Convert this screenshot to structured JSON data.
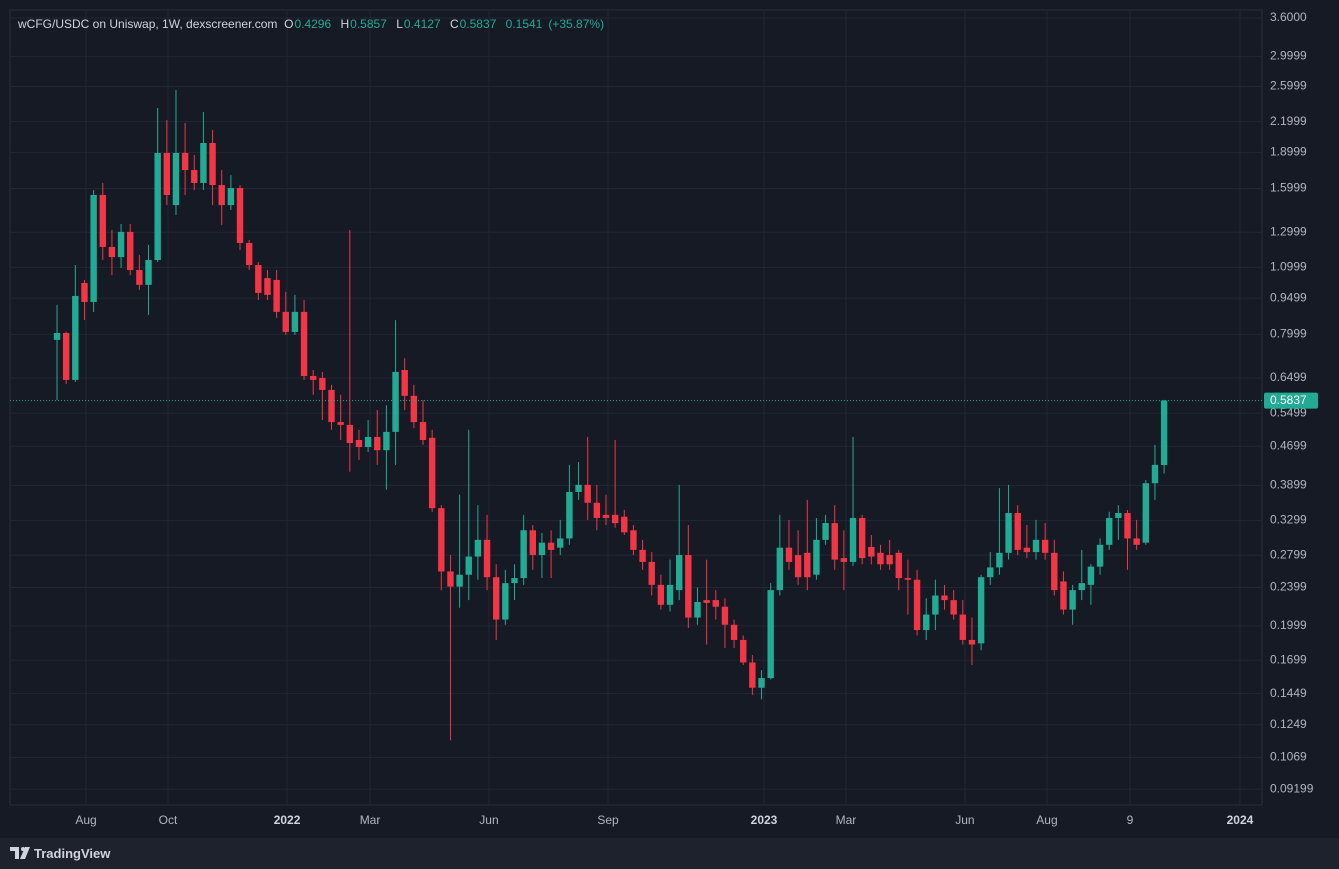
{
  "chart_data": {
    "type": "candlestick",
    "title": "wCFG/USDC on Uniswap, 1W, dexscreener.com",
    "ohlc_labels": [
      "O",
      "H",
      "L",
      "C"
    ],
    "change": 0.1541,
    "change_percent": 35.87,
    "change_percent_label": "(+35.87%)",
    "categories": [
      null,
      null,
      null,
      null,
      null,
      null,
      null,
      null,
      null,
      null,
      null,
      null,
      null,
      null,
      null,
      null,
      null,
      null,
      null,
      null,
      null,
      null,
      null,
      null,
      null,
      null,
      null,
      null,
      null,
      null,
      null,
      null,
      null,
      null,
      null,
      null,
      null,
      null,
      null,
      null,
      null,
      null,
      null,
      null,
      null,
      null,
      null,
      null,
      null,
      null,
      null,
      null,
      null,
      null,
      null,
      null,
      null,
      null,
      null,
      null,
      null,
      null,
      null,
      null,
      null,
      null,
      null,
      null,
      null,
      null,
      null,
      null,
      null,
      null,
      null,
      null,
      null,
      null,
      null,
      null,
      null,
      null,
      null,
      null,
      null,
      null,
      null,
      null,
      null,
      null,
      null,
      null,
      null,
      null,
      null,
      null,
      null,
      null,
      null,
      null,
      null,
      null,
      null,
      null,
      null,
      null,
      null,
      null,
      null,
      null,
      null,
      null,
      null,
      null,
      null,
      null,
      null,
      null,
      null,
      null,
      null,
      null
    ],
    "open": [
      0.779,
      0.805,
      0.644,
      1.021,
      0.933,
      1.552,
      1.212,
      1.155,
      1.302,
      1.086,
      1.012,
      1.139,
      1.895,
      1.479,
      1.895,
      1.747,
      1.643,
      1.987,
      1.627,
      1.479,
      1.604,
      1.235,
      1.112,
      1.045,
      1.036,
      0.89,
      0.809,
      0.89,
      0.656,
      0.65,
      0.614,
      0.527,
      0.52,
      0.484,
      0.468,
      0.491,
      0.461,
      0.503,
      0.675,
      0.597,
      0.527,
      0.489,
      0.35,
      0.259,
      0.241,
      0.255,
      0.278,
      0.301,
      0.252,
      0.206,
      0.245,
      0.251,
      0.315,
      0.28,
      0.297,
      0.29,
      0.303,
      0.378,
      0.391,
      0.359,
      0.339,
      0.339,
      0.336,
      0.315,
      0.287,
      0.271,
      0.243,
      0.221,
      0.237,
      0.28,
      0.208,
      0.226,
      0.226,
      0.219,
      0.201,
      0.187,
      0.168,
      0.149,
      0.156,
      0.237,
      0.29,
      0.28,
      0.283,
      0.255,
      0.301,
      0.326,
      0.276,
      0.271,
      0.334,
      0.291,
      0.283,
      0.28,
      0.283,
      0.251,
      0.249,
      0.196,
      0.211,
      0.231,
      0.226,
      0.211,
      0.187,
      0.184,
      0.252,
      0.264,
      0.283,
      0.342,
      0.29,
      0.284,
      0.301,
      0.283,
      0.247,
      0.216,
      0.237,
      0.243,
      0.265,
      0.294,
      0.334,
      0.342,
      0.303,
      0.297,
      0.394,
      0.4296
    ],
    "high": [
      0.92,
      0.81,
      1.112,
      1.036,
      1.589,
      1.643,
      1.314,
      1.352,
      1.352,
      1.166,
      1.224,
      2.347,
      2.216,
      2.556,
      2.185,
      1.877,
      2.302,
      2.113,
      1.747,
      1.706,
      1.627,
      1.253,
      1.128,
      1.086,
      1.086,
      0.979,
      0.965,
      0.942,
      0.675,
      0.669,
      0.629,
      0.6,
      1.314,
      0.508,
      0.532,
      0.558,
      0.571,
      0.856,
      0.714,
      0.629,
      0.585,
      0.508,
      0.355,
      0.28,
      0.373,
      0.508,
      0.355,
      0.339,
      0.268,
      0.261,
      0.268,
      0.339,
      0.323,
      0.311,
      0.315,
      0.331,
      0.43,
      0.436,
      0.491,
      0.391,
      0.373,
      0.484,
      0.347,
      0.323,
      0.301,
      0.284,
      0.255,
      0.274,
      0.391,
      0.323,
      0.24,
      0.274,
      0.237,
      0.228,
      0.206,
      0.191,
      0.174,
      0.162,
      0.245,
      0.339,
      0.331,
      0.315,
      0.364,
      0.334,
      0.339,
      0.355,
      0.315,
      0.491,
      0.339,
      0.308,
      0.294,
      0.301,
      0.287,
      0.274,
      0.261,
      0.228,
      0.249,
      0.243,
      0.237,
      0.226,
      0.208,
      0.255,
      0.284,
      0.385,
      0.391,
      0.355,
      0.323,
      0.331,
      0.326,
      0.301,
      0.259,
      0.243,
      0.287,
      0.268,
      0.303,
      0.344,
      0.355,
      0.347,
      0.331,
      0.4,
      0.473,
      0.5857
    ],
    "low": [
      0.585,
      0.632,
      0.638,
      0.856,
      0.89,
      1.139,
      1.06,
      1.097,
      1.06,
      0.988,
      0.877,
      1.128,
      1.479,
      1.411,
      1.552,
      1.589,
      1.589,
      1.479,
      1.346,
      1.445,
      1.194,
      1.086,
      0.942,
      0.942,
      0.865,
      0.798,
      0.798,
      0.644,
      0.6,
      0.532,
      0.508,
      0.484,
      0.416,
      0.44,
      0.457,
      0.43,
      0.382,
      0.43,
      0.558,
      0.512,
      0.473,
      0.344,
      0.237,
      0.116,
      0.218,
      0.226,
      0.249,
      0.237,
      0.187,
      0.201,
      0.226,
      0.243,
      0.261,
      0.251,
      0.251,
      0.28,
      0.294,
      0.364,
      0.331,
      0.315,
      0.323,
      0.319,
      0.308,
      0.28,
      0.261,
      0.231,
      0.216,
      0.214,
      0.226,
      0.198,
      0.201,
      0.183,
      0.206,
      0.18,
      0.18,
      0.166,
      0.144,
      0.141,
      0.155,
      0.231,
      0.261,
      0.243,
      0.237,
      0.249,
      0.294,
      0.261,
      0.237,
      0.266,
      0.268,
      0.268,
      0.261,
      0.261,
      0.237,
      0.211,
      0.191,
      0.187,
      0.196,
      0.216,
      0.206,
      0.183,
      0.166,
      0.178,
      0.243,
      0.255,
      0.274,
      0.28,
      0.276,
      0.274,
      0.274,
      0.231,
      0.211,
      0.201,
      0.226,
      0.221,
      0.255,
      0.287,
      0.301,
      0.261,
      0.287,
      0.294,
      0.364,
      0.4127
    ],
    "close": [
      0.805,
      0.644,
      0.96,
      0.933,
      1.552,
      1.212,
      1.155,
      1.302,
      1.086,
      1.012,
      1.139,
      1.895,
      1.552,
      1.895,
      1.747,
      1.643,
      1.987,
      1.627,
      1.479,
      1.604,
      1.235,
      1.112,
      0.974,
      0.965,
      0.89,
      0.809,
      0.89,
      0.656,
      0.644,
      0.614,
      0.527,
      0.52,
      0.477,
      0.468,
      0.491,
      0.461,
      0.503,
      0.669,
      0.597,
      0.527,
      0.484,
      0.35,
      0.259,
      0.241,
      0.255,
      0.278,
      0.301,
      0.252,
      0.206,
      0.245,
      0.251,
      0.315,
      0.28,
      0.297,
      0.287,
      0.303,
      0.378,
      0.391,
      0.359,
      0.334,
      0.334,
      0.326,
      0.312,
      0.287,
      0.271,
      0.243,
      0.221,
      0.243,
      0.28,
      0.208,
      0.224,
      0.223,
      0.219,
      0.201,
      0.187,
      0.168,
      0.149,
      0.156,
      0.237,
      0.29,
      0.271,
      0.252,
      0.252,
      0.301,
      0.326,
      0.274,
      0.271,
      0.334,
      0.276,
      0.278,
      0.268,
      0.268,
      0.251,
      0.249,
      0.196,
      0.211,
      0.231,
      0.226,
      0.211,
      0.187,
      0.183,
      0.252,
      0.264,
      0.283,
      0.342,
      0.287,
      0.284,
      0.301,
      0.283,
      0.237,
      0.216,
      0.237,
      0.245,
      0.265,
      0.294,
      0.334,
      0.342,
      0.303,
      0.294,
      0.394,
      0.43,
      0.5837
    ],
    "up_color": "#22ab94",
    "down_color": "#f23645",
    "log_scale": true,
    "grid": true,
    "last_price_line": true,
    "xlim": [
      -5.14,
      131.7
    ],
    "xticks": [
      {
        "value": 3.17,
        "label": "Aug"
      },
      {
        "value": 12.13,
        "label": "Oct"
      },
      {
        "value": 25.14,
        "label": "2022"
      },
      {
        "value": 34.21,
        "label": "Mar"
      },
      {
        "value": 47.21,
        "label": "Jun"
      },
      {
        "value": 60.22,
        "label": "Sep"
      },
      {
        "value": 77.27,
        "label": "2023"
      },
      {
        "value": 86.23,
        "label": "Mar"
      },
      {
        "value": 99.23,
        "label": "Jun"
      },
      {
        "value": 108.2,
        "label": "Aug"
      },
      {
        "value": 117.27,
        "label": "9"
      },
      {
        "value": 129.29,
        "label": "2024"
      }
    ],
    "ylim": [
      0.0853,
      3.74
    ],
    "yticks": [
      {
        "value": 3.6,
        "label": "3.6000"
      },
      2.9999,
      2.5999,
      2.1999,
      1.8999,
      1.5999,
      1.2999,
      1.0999,
      0.9499,
      0.7999,
      0.6499,
      0.5499,
      0.4699,
      0.3899,
      0.3299,
      0.2799,
      0.2399,
      0.1999,
      0.1699,
      0.1449,
      0.1249,
      0.1069,
      0.09199
    ]
  },
  "branding": "TradingView"
}
